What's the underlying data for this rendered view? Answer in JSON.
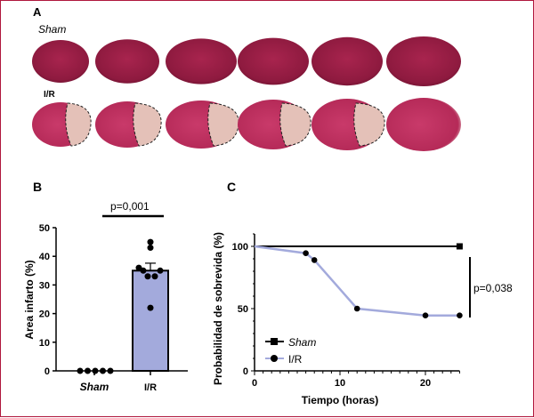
{
  "panels": {
    "a": "A",
    "b": "B",
    "c": "C"
  },
  "panel_a": {
    "row1_label": "Sham",
    "row2_label": "I/R",
    "slices_per_row": 6
  },
  "colors": {
    "border": "#b0173d",
    "bar": "#a3aadc",
    "ir_line": "#a3aadc",
    "sham_line": "#000000",
    "tissue": "#9c1f45",
    "infarct": "#e4c1b8"
  },
  "chart_data": [
    {
      "type": "bar",
      "categories": [
        "Sham",
        "I/R"
      ],
      "values": [
        0,
        35
      ],
      "error": [
        0,
        2.6
      ],
      "points": {
        "Sham": [
          0,
          0,
          0,
          0,
          0
        ],
        "I/R": [
          45,
          43,
          36,
          35,
          35,
          33,
          33,
          22
        ]
      },
      "xlabel": "",
      "ylabel": "Area infarto (%)",
      "ylim": [
        0,
        50
      ],
      "yticks": [
        "0",
        "10",
        "20",
        "30",
        "40",
        "50"
      ],
      "annotation": "p=0,001"
    },
    {
      "type": "line",
      "xlabel": "Tiempo (horas)",
      "ylabel": "Probabilidad de sobrevida (%)",
      "xlim": [
        0,
        24
      ],
      "ylim": [
        0,
        110
      ],
      "xticks": [
        "0",
        "10",
        "20"
      ],
      "yticks": [
        "0",
        "50",
        "100"
      ],
      "series": [
        {
          "name": "Sham",
          "x": [
            0,
            24
          ],
          "y": [
            100,
            100
          ],
          "color": "#000000",
          "marker": "square"
        },
        {
          "name": "I/R",
          "x": [
            0,
            6,
            7,
            12,
            20,
            24
          ],
          "y": [
            100,
            94.5,
            89,
            50,
            44.5,
            44.5
          ],
          "color": "#a3aadc",
          "marker": "circle"
        }
      ],
      "legend": "bottom-left",
      "annotation": "p=0,038"
    }
  ]
}
